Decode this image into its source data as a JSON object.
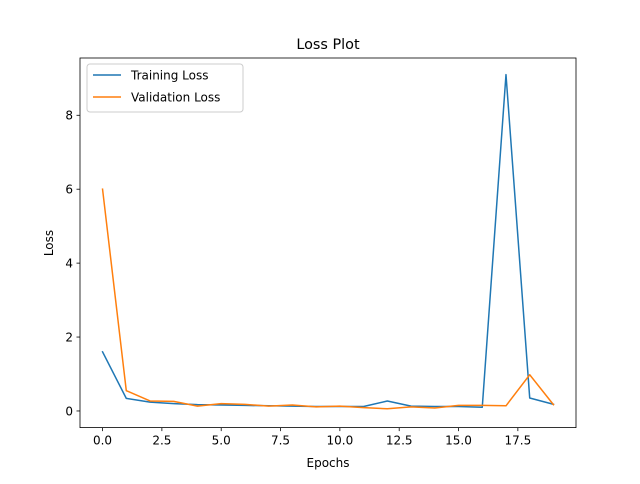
{
  "chart_data": {
    "type": "line",
    "title": "Loss Plot",
    "xlabel": "Epochs",
    "ylabel": "Loss",
    "xlim": [
      -0.95,
      19.95
    ],
    "ylim": [
      -0.45,
      9.55
    ],
    "x_ticks": [
      0,
      2.5,
      5,
      7.5,
      10,
      12.5,
      15,
      17.5
    ],
    "x_tick_labels": [
      "0.0",
      "2.5",
      "5.0",
      "7.5",
      "10.0",
      "12.5",
      "15.0",
      "17.5"
    ],
    "y_ticks": [
      0,
      2,
      4,
      6,
      8
    ],
    "y_tick_labels": [
      "0",
      "2",
      "4",
      "6",
      "8"
    ],
    "grid": false,
    "legend_position": "upper left",
    "x": [
      0,
      1,
      2,
      3,
      4,
      5,
      6,
      7,
      8,
      9,
      10,
      11,
      12,
      13,
      14,
      15,
      16,
      17,
      18,
      19
    ],
    "series": [
      {
        "name": "Training Loss",
        "color": "#1f77b4",
        "values": [
          1.6,
          0.34,
          0.24,
          0.2,
          0.17,
          0.16,
          0.15,
          0.14,
          0.13,
          0.12,
          0.12,
          0.12,
          0.27,
          0.13,
          0.12,
          0.12,
          0.1,
          9.1,
          0.35,
          0.18
        ]
      },
      {
        "name": "Validation Loss",
        "color": "#ff7f0e",
        "values": [
          6.0,
          0.55,
          0.27,
          0.26,
          0.13,
          0.2,
          0.18,
          0.13,
          0.16,
          0.11,
          0.13,
          0.09,
          0.06,
          0.11,
          0.08,
          0.15,
          0.15,
          0.14,
          0.98,
          0.17
        ]
      }
    ]
  }
}
